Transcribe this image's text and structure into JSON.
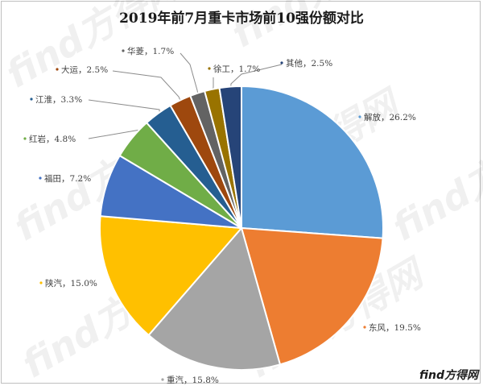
{
  "chart_data": {
    "type": "pie",
    "title": "2019年前7月重卡市场前10强份额对比",
    "slices": [
      {
        "label": "解放",
        "value": 26.2,
        "display": "26.2%",
        "color": "#5b9bd5"
      },
      {
        "label": "东风",
        "value": 19.5,
        "display": "19.5%",
        "color": "#ed7d31"
      },
      {
        "label": "重汽",
        "value": 15.8,
        "display": "15.8%",
        "color": "#a5a5a5"
      },
      {
        "label": "陕汽",
        "value": 15.0,
        "display": "15.0%",
        "color": "#ffc000"
      },
      {
        "label": "福田",
        "value": 7.2,
        "display": "7.2%",
        "color": "#4472c4"
      },
      {
        "label": "红岩",
        "value": 4.8,
        "display": "4.8%",
        "color": "#70ad47"
      },
      {
        "label": "江淮",
        "value": 3.3,
        "display": "3.3%",
        "color": "#255e91"
      },
      {
        "label": "大运",
        "value": 2.5,
        "display": "2.5%",
        "color": "#9e480e"
      },
      {
        "label": "华菱",
        "value": 1.7,
        "display": "1.7%",
        "color": "#636363"
      },
      {
        "label": "徐工",
        "value": 1.7,
        "display": "1.7%",
        "color": "#997300"
      },
      {
        "label": "其他",
        "value": 2.5,
        "display": "2.5%",
        "color": "#264478"
      }
    ]
  },
  "watermark": {
    "brand": "find方得网",
    "logo_find": "find",
    "logo_cn": "方得网"
  }
}
